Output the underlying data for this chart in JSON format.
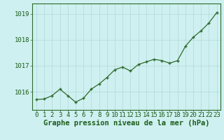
{
  "x": [
    0,
    1,
    2,
    3,
    4,
    5,
    6,
    7,
    8,
    9,
    10,
    11,
    12,
    13,
    14,
    15,
    16,
    17,
    18,
    19,
    20,
    21,
    22,
    23
  ],
  "y": [
    1015.7,
    1015.72,
    1015.85,
    1016.1,
    1015.85,
    1015.6,
    1015.75,
    1016.1,
    1016.3,
    1016.55,
    1016.85,
    1016.95,
    1016.8,
    1017.05,
    1017.15,
    1017.25,
    1017.2,
    1017.1,
    1017.2,
    1017.75,
    1018.1,
    1018.35,
    1018.65,
    1019.05
  ],
  "line_color": "#2d6a2d",
  "marker_color": "#2d6a2d",
  "bg_color": "#cff0f0",
  "grid_color": "#b0d8d8",
  "ylabel_ticks": [
    1016,
    1017,
    1018,
    1019
  ],
  "xlabel_label": "Graphe pression niveau de la mer (hPa)",
  "ylim": [
    1015.3,
    1019.4
  ],
  "xlim": [
    -0.5,
    23.5
  ],
  "title_color": "#1a5c1a",
  "xlabel_fontsize": 7.5,
  "tick_fontsize": 6.5
}
